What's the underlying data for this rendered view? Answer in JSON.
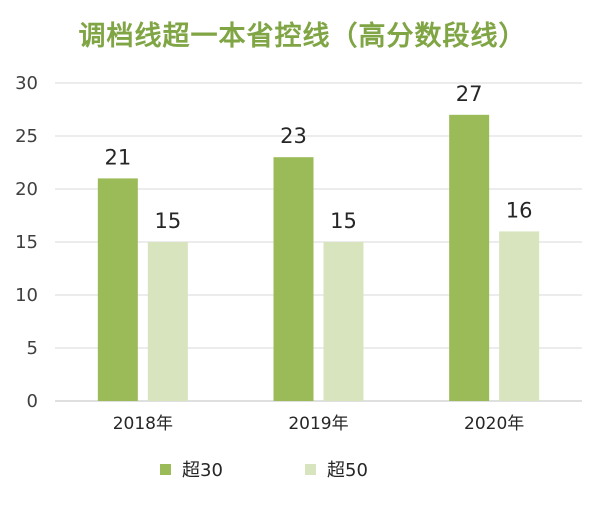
{
  "chart_data": {
    "type": "bar",
    "title": "调档线超一本省控线（高分数段线）",
    "categories": [
      "2018年",
      "2019年",
      "2020年"
    ],
    "series": [
      {
        "name": "超30",
        "values": [
          21,
          23,
          27
        ],
        "color": "#9bbb59"
      },
      {
        "name": "超50",
        "values": [
          15,
          15,
          16
        ],
        "color": "#d7e4bd"
      }
    ],
    "yticks": [
      0,
      5,
      10,
      15,
      20,
      25,
      30
    ],
    "ylim": [
      0,
      30
    ],
    "grid": true,
    "legend": "bottom",
    "title_color": "#80a545"
  }
}
